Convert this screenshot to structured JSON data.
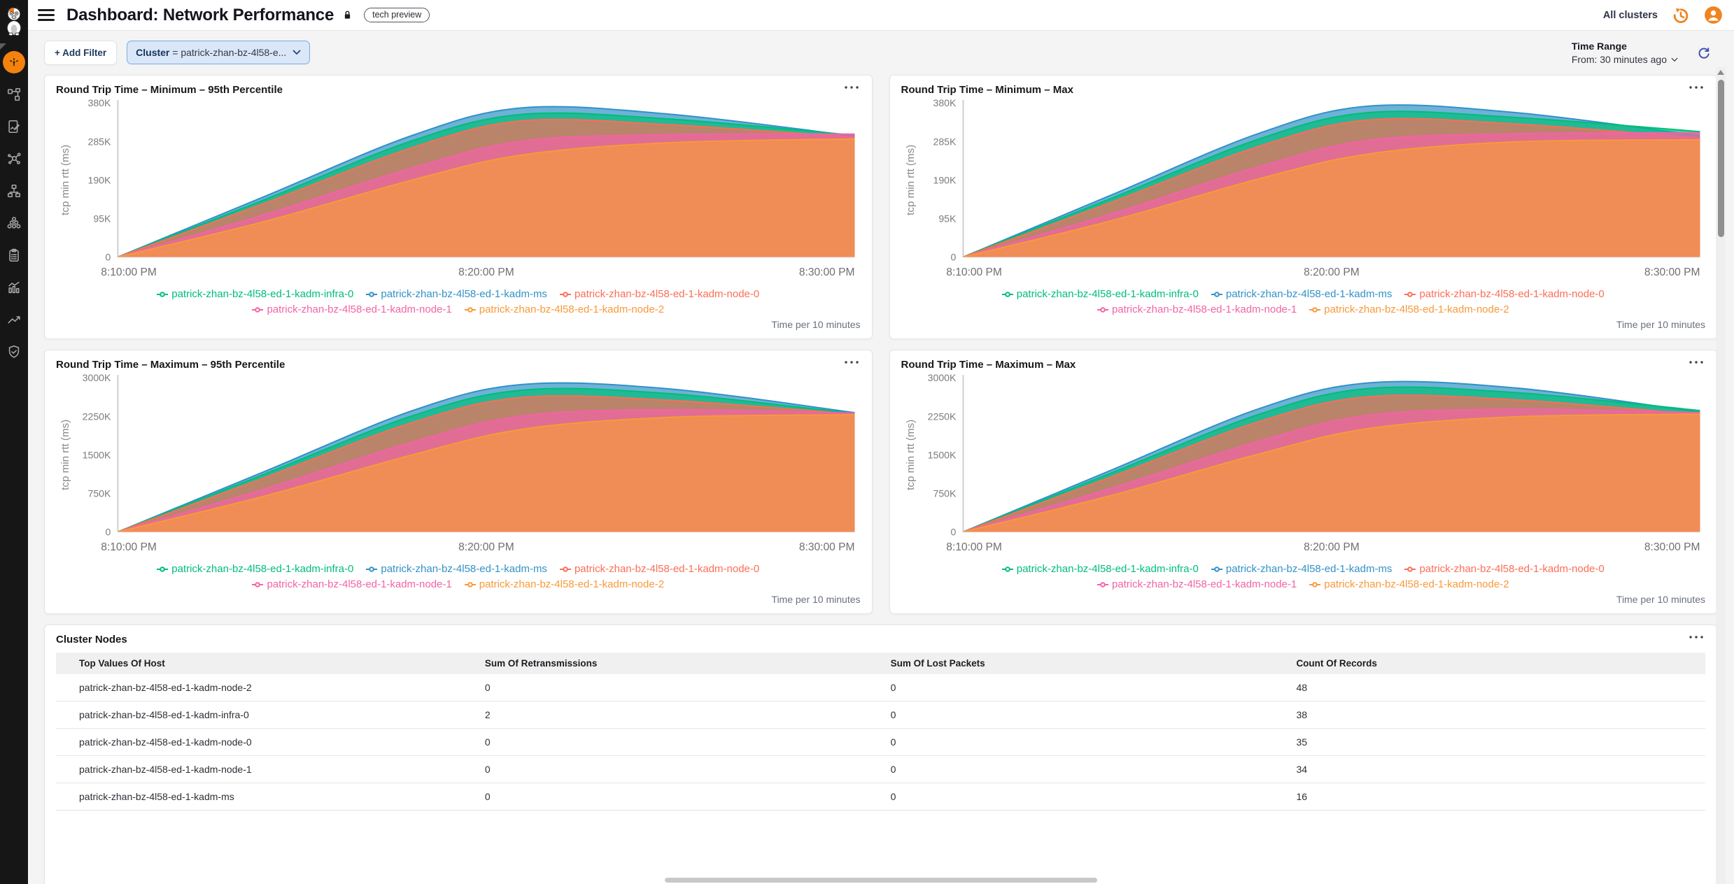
{
  "header": {
    "title": "Dashboard: Network Performance",
    "badge": "tech preview",
    "cluster_selector": "All clusters"
  },
  "filter_bar": {
    "add_filter_label": "+ Add Filter",
    "cluster_filter": {
      "field": "Cluster",
      "value": "= patrick-zhan-bz-4l58-e..."
    },
    "time_range_label": "Time Range",
    "time_range_value": "From: 30 minutes ago"
  },
  "sidebar": {
    "icons": [
      "cat-logo",
      "dashboard-gauge",
      "topology",
      "report-edit",
      "correlation",
      "sitemap",
      "node-cluster",
      "clipboard",
      "bar-chart",
      "trend-line",
      "shield-check"
    ],
    "active_item": "dashboard-gauge"
  },
  "colors": {
    "accent_orange": "#F0831E",
    "active_nav_orange": "#F5820D",
    "refresh_blue": "#3C4FB1",
    "filter_pill_bg": "#D9E7F8",
    "filter_pill_border": "#7FA9DC"
  },
  "chart_data": [
    {
      "type": "area",
      "title": "Round Trip Time – Minimum – 95th Percentile",
      "ylabel": "tcp min rtt (ms)",
      "y_ticks": [
        "380K",
        "285K",
        "190K",
        "95K",
        "0"
      ],
      "ymax_k": 380,
      "x_labels": [
        "8:10:00 PM",
        "8:20:00 PM",
        "8:30:00 PM"
      ],
      "x_minutes": [
        0,
        4,
        8,
        11,
        15,
        20
      ],
      "footnote": "Time per 10 minutes",
      "legend_rows": [
        [
          0,
          1,
          2
        ],
        [
          3,
          4
        ]
      ],
      "paint_order": [
        1,
        0,
        2,
        3,
        4
      ],
      "series": [
        {
          "name": "patrick-zhan-bz-4l58-ed-1-kadm-infra-0",
          "color": "#00BD79",
          "values_k": [
            0,
            142,
            287,
            352,
            340,
            300
          ]
        },
        {
          "name": "patrick-zhan-bz-4l58-ed-1-kadm-ms",
          "color": "#3192C8",
          "values_k": [
            0,
            150,
            300,
            368,
            352,
            298
          ]
        },
        {
          "name": "patrick-zhan-bz-4l58-ed-1-kadm-node-0",
          "color": "#FB6E57",
          "values_k": [
            0,
            133,
            270,
            336,
            326,
            295
          ]
        },
        {
          "name": "patrick-zhan-bz-4l58-ed-1-kadm-node-1",
          "color": "#F264A6",
          "values_k": [
            0,
            105,
            220,
            286,
            302,
            303
          ]
        },
        {
          "name": "patrick-zhan-bz-4l58-ed-1-kadm-node-2",
          "color": "#F79A3A",
          "values_k": [
            0,
            88,
            190,
            252,
            282,
            291
          ]
        }
      ]
    },
    {
      "type": "area",
      "title": "Round Trip Time – Minimum – Max",
      "ylabel": "tcp min rtt (ms)",
      "y_ticks": [
        "380K",
        "285K",
        "190K",
        "95K",
        "0"
      ],
      "ymax_k": 380,
      "x_labels": [
        "8:10:00 PM",
        "8:20:00 PM",
        "8:30:00 PM"
      ],
      "x_minutes": [
        0,
        4,
        8,
        11,
        15,
        20
      ],
      "footnote": "Time per 10 minutes",
      "legend_rows": [
        [
          0,
          1,
          2
        ],
        [
          3,
          4
        ]
      ],
      "paint_order": [
        1,
        0,
        2,
        3,
        4
      ],
      "series": [
        {
          "name": "patrick-zhan-bz-4l58-ed-1-kadm-infra-0",
          "color": "#00BD79",
          "values_k": [
            0,
            144,
            290,
            356,
            344,
            309
          ]
        },
        {
          "name": "patrick-zhan-bz-4l58-ed-1-kadm-ms",
          "color": "#3192C8",
          "values_k": [
            0,
            152,
            304,
            372,
            356,
            299
          ]
        },
        {
          "name": "patrick-zhan-bz-4l58-ed-1-kadm-node-0",
          "color": "#FB6E57",
          "values_k": [
            0,
            134,
            272,
            338,
            328,
            293
          ]
        },
        {
          "name": "patrick-zhan-bz-4l58-ed-1-kadm-node-1",
          "color": "#F264A6",
          "values_k": [
            0,
            106,
            222,
            288,
            304,
            306
          ]
        },
        {
          "name": "patrick-zhan-bz-4l58-ed-1-kadm-node-2",
          "color": "#F79A3A",
          "values_k": [
            0,
            89,
            192,
            254,
            284,
            289
          ]
        }
      ]
    },
    {
      "type": "area",
      "title": "Round Trip Time – Maximum – 95th Percentile",
      "ylabel": "tcp min rtt (ms)",
      "y_ticks": [
        "3000K",
        "2250K",
        "1500K",
        "750K",
        "0"
      ],
      "ymax_k": 3000,
      "x_labels": [
        "8:10:00 PM",
        "8:20:00 PM",
        "8:30:00 PM"
      ],
      "x_minutes": [
        0,
        4,
        8,
        11,
        15,
        20
      ],
      "footnote": "Time per 10 minutes",
      "legend_rows": [
        [
          0,
          1,
          2
        ],
        [
          3,
          4
        ]
      ],
      "paint_order": [
        1,
        0,
        2,
        3,
        4
      ],
      "series": [
        {
          "name": "patrick-zhan-bz-4l58-ed-1-kadm-infra-0",
          "color": "#00BD79",
          "values_k": [
            0,
            1130,
            2260,
            2760,
            2690,
            2300
          ]
        },
        {
          "name": "patrick-zhan-bz-4l58-ed-1-kadm-ms",
          "color": "#3192C8",
          "values_k": [
            0,
            1180,
            2360,
            2870,
            2780,
            2320
          ]
        },
        {
          "name": "patrick-zhan-bz-4l58-ed-1-kadm-node-0",
          "color": "#FB6E57",
          "values_k": [
            0,
            1060,
            2130,
            2620,
            2560,
            2290
          ]
        },
        {
          "name": "patrick-zhan-bz-4l58-ed-1-kadm-node-1",
          "color": "#F264A6",
          "values_k": [
            0,
            840,
            1750,
            2260,
            2380,
            2310
          ]
        },
        {
          "name": "patrick-zhan-bz-4l58-ed-1-kadm-node-2",
          "color": "#F79A3A",
          "values_k": [
            0,
            700,
            1500,
            2000,
            2230,
            2280
          ]
        }
      ]
    },
    {
      "type": "area",
      "title": "Round Trip Time – Maximum – Max",
      "ylabel": "tcp min rtt (ms)",
      "y_ticks": [
        "3000K",
        "2250K",
        "1500K",
        "750K",
        "0"
      ],
      "ymax_k": 3000,
      "x_labels": [
        "8:10:00 PM",
        "8:20:00 PM",
        "8:30:00 PM"
      ],
      "x_minutes": [
        0,
        4,
        8,
        11,
        15,
        20
      ],
      "footnote": "Time per 10 minutes",
      "legend_rows": [
        [
          0,
          1,
          2
        ],
        [
          3,
          4
        ]
      ],
      "paint_order": [
        1,
        0,
        2,
        3,
        4
      ],
      "series": [
        {
          "name": "patrick-zhan-bz-4l58-ed-1-kadm-infra-0",
          "color": "#00BD79",
          "values_k": [
            0,
            1140,
            2280,
            2790,
            2710,
            2360
          ]
        },
        {
          "name": "patrick-zhan-bz-4l58-ed-1-kadm-ms",
          "color": "#3192C8",
          "values_k": [
            0,
            1195,
            2390,
            2900,
            2800,
            2330
          ]
        },
        {
          "name": "patrick-zhan-bz-4l58-ed-1-kadm-node-0",
          "color": "#FB6E57",
          "values_k": [
            0,
            1065,
            2140,
            2630,
            2570,
            2280
          ]
        },
        {
          "name": "patrick-zhan-bz-4l58-ed-1-kadm-node-1",
          "color": "#F264A6",
          "values_k": [
            0,
            845,
            1760,
            2270,
            2390,
            2320
          ]
        },
        {
          "name": "patrick-zhan-bz-4l58-ed-1-kadm-node-2",
          "color": "#F79A3A",
          "values_k": [
            0,
            705,
            1510,
            2010,
            2240,
            2290
          ]
        }
      ]
    }
  ],
  "table": {
    "title": "Cluster Nodes",
    "columns": [
      "Top Values Of Host",
      "Sum Of Retransmissions",
      "Sum Of Lost Packets",
      "Count Of Records"
    ],
    "rows": [
      [
        "patrick-zhan-bz-4l58-ed-1-kadm-node-2",
        "0",
        "0",
        "48"
      ],
      [
        "patrick-zhan-bz-4l58-ed-1-kadm-infra-0",
        "2",
        "0",
        "38"
      ],
      [
        "patrick-zhan-bz-4l58-ed-1-kadm-node-0",
        "0",
        "0",
        "35"
      ],
      [
        "patrick-zhan-bz-4l58-ed-1-kadm-node-1",
        "0",
        "0",
        "34"
      ],
      [
        "patrick-zhan-bz-4l58-ed-1-kadm-ms",
        "0",
        "0",
        "16"
      ]
    ]
  }
}
